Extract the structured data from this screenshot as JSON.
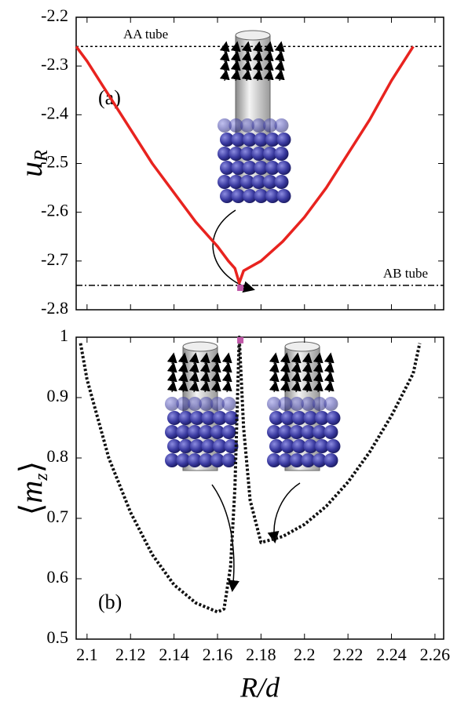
{
  "chart_data": [
    {
      "type": "line",
      "panel_label": "(a)",
      "ylabel": {
        "text": "u",
        "subscript": "R"
      },
      "xlim": [
        2.095,
        2.264
      ],
      "xticks": [
        2.1,
        2.12,
        2.14,
        2.16,
        2.18,
        2.2,
        2.22,
        2.24,
        2.26
      ],
      "xticklabels": false,
      "ylim": [
        -2.8,
        -2.2
      ],
      "yticks": [
        -2.8,
        -2.7,
        -2.6,
        -2.5,
        -2.4,
        -2.3,
        -2.2
      ],
      "series": [
        {
          "color": "#e8231f",
          "style": "solid",
          "x": [
            2.095,
            2.1,
            2.11,
            2.12,
            2.13,
            2.14,
            2.15,
            2.16,
            2.165,
            2.168,
            2.17,
            2.172,
            2.18,
            2.19,
            2.2,
            2.21,
            2.22,
            2.23,
            2.24,
            2.25
          ],
          "values": [
            -2.26,
            -2.29,
            -2.36,
            -2.43,
            -2.5,
            -2.56,
            -2.62,
            -2.67,
            -2.7,
            -2.715,
            -2.745,
            -2.72,
            -2.7,
            -2.66,
            -2.61,
            -2.55,
            -2.48,
            -2.41,
            -2.33,
            -2.26
          ]
        }
      ],
      "hlines": [
        {
          "y": -2.26,
          "label": "AA tube",
          "style": "dotted"
        },
        {
          "y": -2.75,
          "label": "AB tube",
          "style": "dashdot"
        }
      ],
      "markers": [
        {
          "x": 2.1705,
          "y": -2.755,
          "color": "#c058a8"
        }
      ]
    },
    {
      "type": "line",
      "panel_label": "(b)",
      "ylabel": {
        "open": "⟨",
        "text": "m",
        "subscript": "z",
        "close": "⟩"
      },
      "xlabel": "R/d",
      "xlim": [
        2.095,
        2.264
      ],
      "xticks": [
        2.1,
        2.12,
        2.14,
        2.16,
        2.18,
        2.2,
        2.22,
        2.24,
        2.26
      ],
      "xticklabels": true,
      "ylim": [
        0.5,
        1
      ],
      "yticks": [
        0.5,
        0.6,
        0.7,
        0.8,
        0.9,
        1
      ],
      "series": [
        {
          "color": "#111111",
          "style": "dotted",
          "x": [
            2.097,
            2.1,
            2.11,
            2.12,
            2.13,
            2.14,
            2.15,
            2.16,
            2.163,
            2.166,
            2.168,
            2.17,
            2.172,
            2.175,
            2.18,
            2.19,
            2.2,
            2.21,
            2.22,
            2.23,
            2.24,
            2.25,
            2.253
          ],
          "values": [
            0.99,
            0.93,
            0.8,
            0.71,
            0.64,
            0.59,
            0.56,
            0.545,
            0.55,
            0.62,
            0.75,
            1.0,
            0.85,
            0.73,
            0.66,
            0.67,
            0.69,
            0.72,
            0.76,
            0.81,
            0.87,
            0.94,
            0.99
          ]
        }
      ],
      "markers": [
        {
          "x": 2.1705,
          "y": 0.995,
          "color": "#c058a8"
        }
      ]
    }
  ]
}
